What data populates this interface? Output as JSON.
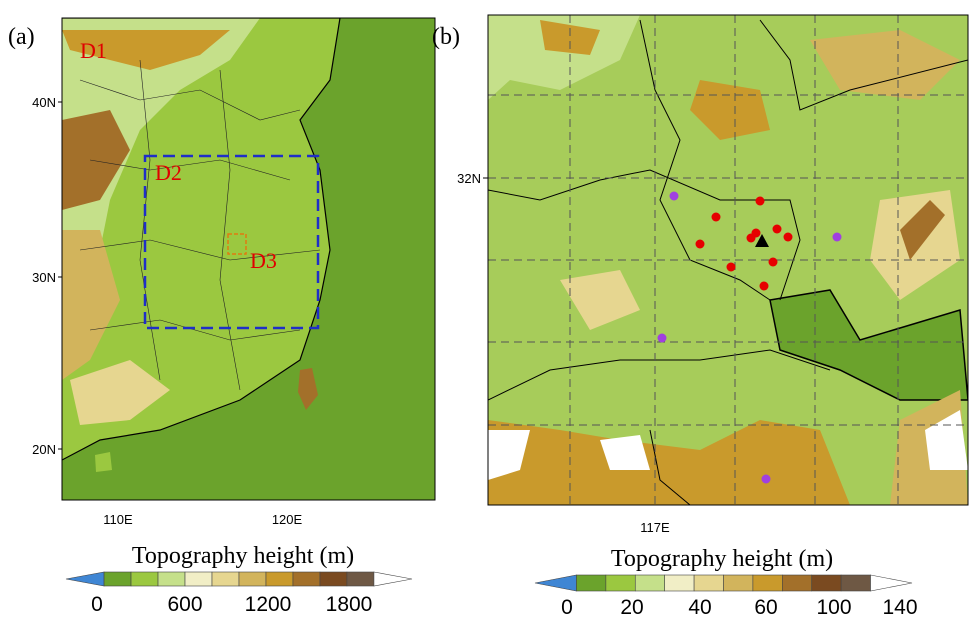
{
  "panel_a": {
    "label": "(a)",
    "domains": [
      "D1",
      "D2",
      "D3"
    ],
    "y_axis_labels": [
      "40N",
      "30N",
      "20N"
    ],
    "x_axis_labels": [
      "110E",
      "120E"
    ],
    "colorbar": {
      "title": "Topography height (m)",
      "ticks": [
        0,
        600,
        1200,
        1800
      ],
      "colors": [
        "#3f86d4",
        "#6ba32c",
        "#9bc840",
        "#c5e08a",
        "#f1eec6",
        "#e6d690",
        "#d2b45c",
        "#c99a2c",
        "#a3702a",
        "#7a4a20",
        "#6e5844",
        "#ffffff"
      ]
    }
  },
  "panel_b": {
    "label": "(b)",
    "y_axis_labels": [
      "32N"
    ],
    "x_axis_labels": [
      "117E"
    ],
    "colorbar": {
      "title": "Topography height (m)",
      "ticks": [
        0,
        20,
        40,
        60,
        100,
        140
      ],
      "colors": [
        "#3f86d4",
        "#6ba32c",
        "#9bc840",
        "#c5e08a",
        "#f1eec6",
        "#e6d690",
        "#d2b45c",
        "#c99a2c",
        "#a3702a",
        "#7a4a20",
        "#6e5844",
        "#ffffff"
      ]
    }
  }
}
